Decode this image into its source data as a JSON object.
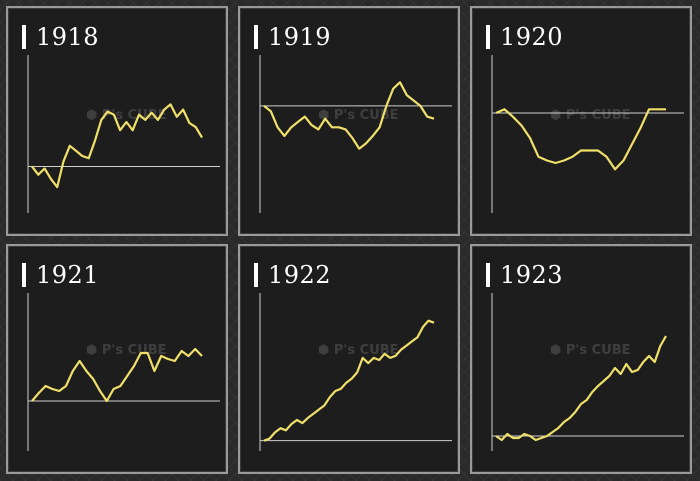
{
  "colors": {
    "line": "#f0e06a",
    "axis": "#cfcfcf",
    "panel_bg": "#1d1d1d"
  },
  "watermark": {
    "text": "P's CUBE",
    "icon": "cube-logo-icon"
  },
  "chart_data": [
    {
      "type": "line",
      "title": "1918",
      "baseline": 0,
      "ylim": [
        -0.45,
        1.0
      ],
      "x": [
        0,
        1,
        2,
        3,
        4,
        5,
        6,
        7,
        8,
        9,
        10,
        11,
        12,
        13,
        14,
        15,
        16,
        17,
        18,
        19,
        20,
        21,
        22,
        23,
        24,
        25,
        26,
        27
      ],
      "values": [
        0,
        -0.08,
        -0.02,
        -0.12,
        -0.2,
        0.05,
        0.2,
        0.15,
        0.1,
        0.08,
        0.25,
        0.45,
        0.53,
        0.5,
        0.35,
        0.43,
        0.35,
        0.5,
        0.45,
        0.52,
        0.45,
        0.55,
        0.6,
        0.48,
        0.55,
        0.42,
        0.38,
        0.28
      ]
    },
    {
      "type": "line",
      "title": "1919",
      "baseline": 0,
      "ylim": [
        -1.0,
        0.4
      ],
      "x": [
        0,
        1,
        2,
        3,
        4,
        5,
        6,
        7,
        8,
        9,
        10,
        11,
        12,
        13,
        14,
        15,
        16,
        17,
        18,
        19,
        20,
        21,
        22,
        23,
        24,
        25
      ],
      "values": [
        0,
        -0.05,
        -0.2,
        -0.28,
        -0.2,
        -0.15,
        -0.1,
        -0.18,
        -0.22,
        -0.12,
        -0.2,
        -0.2,
        -0.22,
        -0.3,
        -0.4,
        -0.35,
        -0.28,
        -0.2,
        0.0,
        0.16,
        0.22,
        0.1,
        0.05,
        0.0,
        -0.1,
        -0.12
      ]
    },
    {
      "type": "line",
      "title": "1920",
      "baseline": 0,
      "ylim": [
        -0.8,
        0.4
      ],
      "x": [
        0,
        1,
        2,
        3,
        4,
        5,
        6,
        7,
        8,
        9,
        10,
        11,
        12,
        13,
        14,
        15,
        16,
        17,
        18,
        19,
        20
      ],
      "values": [
        0,
        0.03,
        -0.03,
        -0.1,
        -0.2,
        -0.35,
        -0.38,
        -0.4,
        -0.38,
        -0.35,
        -0.3,
        -0.3,
        -0.3,
        -0.35,
        -0.45,
        -0.38,
        -0.25,
        -0.12,
        0.03,
        0.03,
        0.03
      ]
    },
    {
      "type": "line",
      "title": "1921",
      "baseline": 0,
      "ylim": [
        -0.5,
        1.0
      ],
      "x": [
        0,
        1,
        2,
        3,
        4,
        5,
        6,
        7,
        8,
        9,
        10,
        11,
        12,
        13,
        14,
        15,
        16,
        17,
        18,
        19,
        20,
        21,
        22,
        23,
        24,
        25
      ],
      "values": [
        0,
        0.08,
        0.15,
        0.12,
        0.1,
        0.15,
        0.3,
        0.4,
        0.3,
        0.22,
        0.1,
        0.0,
        0.12,
        0.15,
        0.25,
        0.35,
        0.48,
        0.48,
        0.3,
        0.45,
        0.42,
        0.4,
        0.5,
        0.45,
        0.52,
        0.45
      ]
    },
    {
      "type": "line",
      "title": "1922",
      "baseline": 0,
      "ylim": [
        -0.1,
        1.35
      ],
      "x": [
        0,
        1,
        2,
        3,
        4,
        5,
        6,
        7,
        8,
        9,
        10,
        11,
        12,
        13,
        14,
        15,
        16,
        17,
        18,
        19,
        20,
        21,
        22,
        23,
        24,
        25,
        26,
        27,
        28,
        29,
        30,
        31
      ],
      "values": [
        0,
        0.02,
        0.08,
        0.12,
        0.1,
        0.16,
        0.2,
        0.17,
        0.22,
        0.26,
        0.3,
        0.34,
        0.42,
        0.48,
        0.5,
        0.56,
        0.6,
        0.66,
        0.8,
        0.75,
        0.8,
        0.78,
        0.84,
        0.8,
        0.82,
        0.88,
        0.92,
        0.96,
        1.0,
        1.1,
        1.16,
        1.14
      ]
    },
    {
      "type": "line",
      "title": "1923",
      "baseline": 0,
      "ylim": [
        -0.15,
        1.35
      ],
      "x": [
        0,
        1,
        2,
        3,
        4,
        5,
        6,
        7,
        8,
        9,
        10,
        11,
        12,
        13,
        14,
        15,
        16,
        17,
        18,
        19,
        20,
        21,
        22,
        23,
        24,
        25,
        26,
        27,
        28,
        29,
        30
      ],
      "values": [
        0,
        -0.04,
        0.02,
        -0.02,
        -0.02,
        0.02,
        0.0,
        -0.04,
        -0.02,
        0.0,
        0.04,
        0.08,
        0.14,
        0.18,
        0.24,
        0.32,
        0.36,
        0.44,
        0.5,
        0.55,
        0.6,
        0.68,
        0.62,
        0.72,
        0.64,
        0.66,
        0.74,
        0.8,
        0.74,
        0.9,
        1.0
      ]
    }
  ]
}
